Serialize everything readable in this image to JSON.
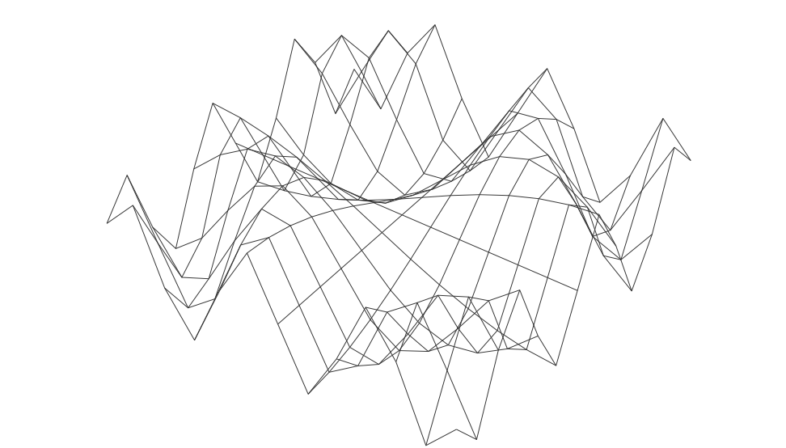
{
  "chart_data": {
    "type": "wireframe",
    "color": "#333333",
    "tick_labels": false,
    "x": [
      -3.0,
      -2.5,
      -2.0,
      -1.5,
      -1.0,
      -0.5,
      0.0,
      0.5,
      1.0,
      1.5,
      2.0,
      2.5,
      3.0
    ],
    "y": [
      -3.0,
      -2.5,
      -2.0,
      -1.5,
      -1.0,
      -0.5,
      0.0,
      0.5,
      1.0,
      1.5,
      2.0,
      2.5,
      3.0
    ],
    "z": [
      [
        0.41,
        0.94,
        -0.28,
        -0.98,
        0.14,
        1.0,
        0,
        -1.0,
        -0.14,
        0.98,
        0.28,
        -0.94,
        -0.41
      ],
      [
        0.94,
        -0.03,
        -0.96,
        -0.57,
        0.6,
        0.95,
        0,
        -0.95,
        -0.6,
        0.57,
        0.96,
        0.03,
        -0.94
      ],
      [
        -0.28,
        -0.96,
        -0.76,
        0.14,
        0.91,
        0.84,
        0,
        -0.84,
        -0.91,
        -0.14,
        0.76,
        0.96,
        0.28
      ],
      [
        -0.98,
        -0.57,
        0.14,
        0.78,
        1.0,
        0.68,
        0,
        -0.68,
        -1.0,
        -0.78,
        -0.14,
        0.57,
        0.98
      ],
      [
        0.14,
        0.6,
        0.91,
        1.0,
        0.84,
        0.48,
        0,
        -0.48,
        -0.84,
        -1.0,
        -0.91,
        -0.6,
        -0.14
      ],
      [
        1.0,
        0.95,
        0.84,
        0.68,
        0.48,
        0.25,
        0,
        -0.25,
        -0.48,
        -0.68,
        -0.84,
        -0.95,
        -1.0
      ],
      [
        0,
        0,
        0,
        0,
        0,
        0,
        0,
        0,
        0,
        0,
        0,
        0,
        0
      ],
      [
        -1.0,
        -0.95,
        -0.84,
        -0.68,
        -0.48,
        -0.25,
        0,
        0.25,
        0.48,
        0.68,
        0.84,
        0.95,
        1.0
      ],
      [
        -0.14,
        -0.6,
        -0.91,
        -1.0,
        -0.84,
        -0.48,
        0,
        0.48,
        0.84,
        1.0,
        0.91,
        0.6,
        0.14
      ],
      [
        0.98,
        0.57,
        -0.14,
        -0.78,
        -1.0,
        -0.68,
        0,
        0.68,
        1.0,
        0.78,
        0.14,
        -0.57,
        -0.98
      ],
      [
        0.28,
        0.96,
        0.76,
        -0.14,
        -0.91,
        -0.84,
        0,
        0.84,
        0.91,
        0.14,
        -0.76,
        -0.96,
        -0.28
      ],
      [
        -0.94,
        0.03,
        0.96,
        0.57,
        -0.6,
        -0.95,
        0,
        0.95,
        0.6,
        -0.57,
        -0.96,
        -0.03,
        0.94
      ],
      [
        -0.41,
        -0.94,
        0.28,
        0.98,
        -0.14,
        -1.0,
        0,
        1.0,
        0.14,
        -0.98,
        -0.28,
        0.94,
        0.41
      ]
    ]
  }
}
